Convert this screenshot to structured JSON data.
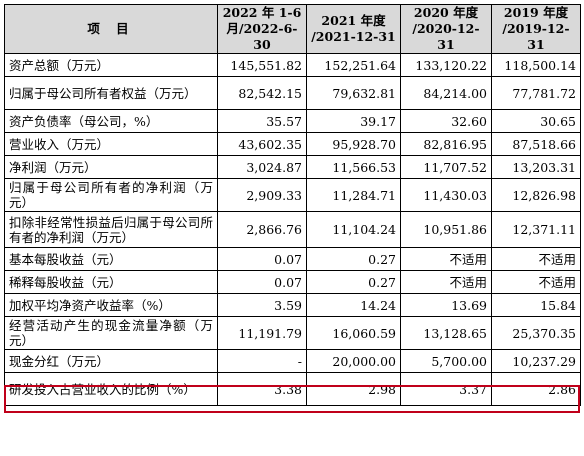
{
  "header": {
    "item": "项  目",
    "years": [
      [
        "2022 年 1-6",
        "月/2022-6-30"
      ],
      [
        "2021 年度",
        "/2021-12-31"
      ],
      [
        "2020 年度",
        "/2020-12-31"
      ],
      [
        "2019 年度",
        "/2019-12-31"
      ]
    ]
  },
  "rows": [
    {
      "label": "资产总额（万元）",
      "values": [
        "145,551.82",
        "152,251.64",
        "133,120.22",
        "118,500.14"
      ]
    },
    {
      "label": "归属于母公司所有者权益（万元）",
      "values": [
        "82,542.15",
        "79,632.81",
        "84,214.00",
        "77,781.72"
      ]
    },
    {
      "label": "资产负债率（母公司，%）",
      "values": [
        "35.57",
        "39.17",
        "32.60",
        "30.65"
      ]
    },
    {
      "label": "营业收入（万元）",
      "values": [
        "43,602.35",
        "95,928.70",
        "82,816.95",
        "87,518.66"
      ]
    },
    {
      "label": "净利润（万元）",
      "values": [
        "3,024.87",
        "11,566.53",
        "11,707.52",
        "13,203.31"
      ]
    },
    {
      "label": "归属于母公司所有者的净利润（万元）",
      "values": [
        "2,909.33",
        "11,284.71",
        "11,430.03",
        "12,826.98"
      ]
    },
    {
      "label": "扣除非经常性损益后归属于母公司所有者的净利润（万元）",
      "values": [
        "2,866.76",
        "11,104.24",
        "10,951.86",
        "12,371.11"
      ]
    },
    {
      "label": "基本每股收益（元）",
      "values": [
        "0.07",
        "0.27",
        "不适用",
        "不适用"
      ]
    },
    {
      "label": "稀释每股收益（元）",
      "values": [
        "0.07",
        "0.27",
        "不适用",
        "不适用"
      ]
    },
    {
      "label": "加权平均净资产收益率（%）",
      "values": [
        "3.59",
        "14.24",
        "13.69",
        "15.84"
      ]
    },
    {
      "label": "经营活动产生的现金流量净额（万元）",
      "values": [
        "11,191.79",
        "16,060.59",
        "13,128.65",
        "25,370.35"
      ]
    },
    {
      "label": "现金分红（万元）",
      "values": [
        "-",
        "20,000.00",
        "5,700.00",
        "10,237.29"
      ]
    },
    {
      "label": "研发投入占营业收入的比例（%）",
      "values": [
        "3.38",
        "2.98",
        "3.37",
        "2.86"
      ]
    }
  ],
  "colors": {
    "header_bg": "#d9d9d9",
    "highlight_border": "#c0001a"
  }
}
